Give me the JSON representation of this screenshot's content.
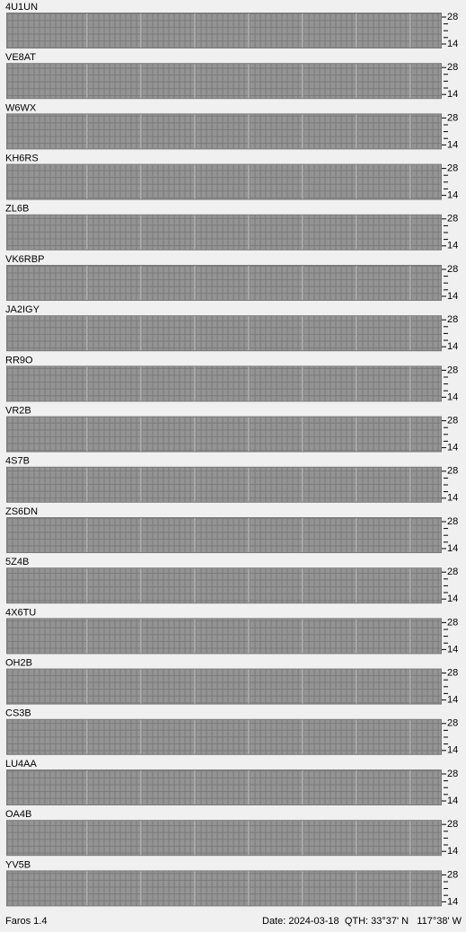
{
  "beacons": [
    {
      "name": "4U1UN"
    },
    {
      "name": "VE8AT"
    },
    {
      "name": "W6WX"
    },
    {
      "name": "KH6RS"
    },
    {
      "name": "ZL6B"
    },
    {
      "name": "VK6RBP"
    },
    {
      "name": "JA2IGY"
    },
    {
      "name": "RR9O"
    },
    {
      "name": "VR2B"
    },
    {
      "name": "4S7B"
    },
    {
      "name": "ZS6DN"
    },
    {
      "name": "5Z4B"
    },
    {
      "name": "4X6TU"
    },
    {
      "name": "OH2B"
    },
    {
      "name": "CS3B"
    },
    {
      "name": "LU4AA"
    },
    {
      "name": "OA4B"
    },
    {
      "name": "YV5B"
    }
  ],
  "bands": {
    "top": "28",
    "bottom": "14"
  },
  "footer": {
    "app": "Faros 1.4",
    "date": "Date: 2024-03-18",
    "qth": "QTH: 33°37' N   117°38' W"
  }
}
